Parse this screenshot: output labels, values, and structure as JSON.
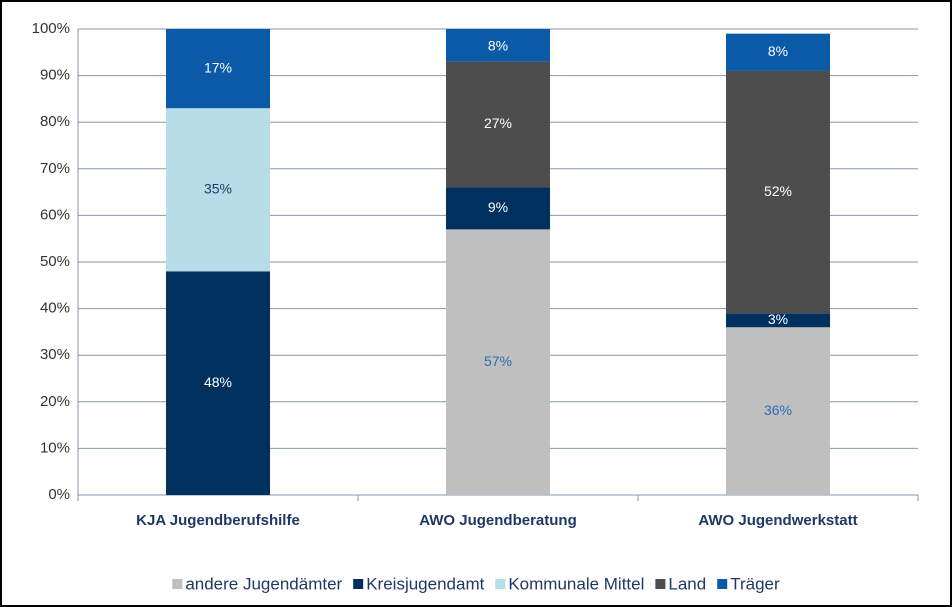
{
  "chart_data": {
    "type": "stacked_bar",
    "categories": [
      "KJA Jugendberufshilfe",
      "AWO Jugendberatung",
      "AWO Jugendwerkstatt"
    ],
    "series": [
      {
        "name": "andere Jugendämter",
        "color": "#bfbfbf",
        "label_color": "#2e6db4",
        "values": [
          null,
          57,
          36
        ],
        "value_labels": [
          null,
          "57%",
          "36%"
        ]
      },
      {
        "name": "Kreisjugendamt",
        "color": "#00305e",
        "label_color": "#ffffff",
        "values": [
          48,
          9,
          3
        ],
        "value_labels": [
          "48%",
          "9%",
          "3%"
        ]
      },
      {
        "name": "Kommunale Mittel",
        "color": "#b7dde8",
        "label_color": "#1f3864",
        "values": [
          35,
          null,
          null
        ],
        "value_labels": [
          "35%",
          null,
          null
        ]
      },
      {
        "name": "Land",
        "color": "#4d4d4d",
        "label_color": "#ffffff",
        "values": [
          null,
          27,
          52
        ],
        "value_labels": [
          null,
          "27%",
          "52%"
        ]
      },
      {
        "name": "Träger",
        "color": "#0a5aa8",
        "label_color": "#ffffff",
        "values": [
          17,
          8,
          8
        ],
        "value_labels": [
          "17%",
          "8%",
          "8%"
        ]
      }
    ],
    "ylim": [
      0,
      100
    ],
    "yticks": [
      {
        "value": 0,
        "label": "0%"
      },
      {
        "value": 10,
        "label": "10%"
      },
      {
        "value": 20,
        "label": "20%"
      },
      {
        "value": 30,
        "label": "30%"
      },
      {
        "value": 40,
        "label": "40%"
      },
      {
        "value": 50,
        "label": "50%"
      },
      {
        "value": 60,
        "label": "60%"
      },
      {
        "value": 70,
        "label": "70%"
      },
      {
        "value": 80,
        "label": "80%"
      },
      {
        "value": 90,
        "label": "90%"
      },
      {
        "value": 100,
        "label": "100%"
      }
    ],
    "grid": true,
    "legend": "bottom"
  }
}
